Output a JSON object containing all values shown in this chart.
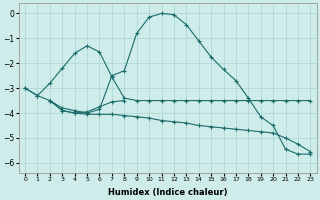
{
  "xlabel": "Humidex (Indice chaleur)",
  "ylabel": "",
  "xlim": [
    -0.5,
    23.5
  ],
  "ylim": [
    -6.4,
    0.4
  ],
  "bg_color": "#ceecea",
  "grid_color": "#b0d8d4",
  "line_color": "#1a6b6b",
  "lines": [
    {
      "x": [
        0,
        1,
        2,
        3,
        4,
        5,
        6,
        7,
        8,
        9,
        10,
        11,
        12,
        13,
        14,
        15,
        16,
        17,
        18,
        19,
        20,
        21,
        22,
        23
      ],
      "y": [
        -3.0,
        -3.3,
        -2.8,
        -2.2,
        -1.6,
        -1.3,
        -1.55,
        -2.55,
        -3.4,
        -3.5,
        -3.5,
        -3.5,
        -3.5,
        -3.5,
        -3.5,
        -3.5,
        -3.5,
        -3.5,
        -3.5,
        -3.5,
        -3.5,
        -3.5,
        -3.5,
        -3.5
      ],
      "marker": "+"
    },
    {
      "x": [
        0,
        1,
        2,
        3,
        4,
        5,
        6,
        7,
        8,
        9,
        10,
        11,
        12,
        13,
        14,
        15,
        16,
        17,
        18,
        19,
        20,
        21,
        22,
        23
      ],
      "y": [
        -3.0,
        -3.3,
        -3.5,
        -3.8,
        -3.9,
        -4.0,
        -3.85,
        -2.5,
        -2.3,
        -0.8,
        -0.15,
        0.0,
        -0.05,
        -0.45,
        -1.1,
        -1.75,
        -2.25,
        -2.7,
        -3.4,
        -4.15,
        -4.5,
        -5.45,
        -5.65,
        -5.65
      ],
      "marker": "+"
    },
    {
      "x": [
        2,
        3,
        4,
        5,
        6,
        7,
        8,
        9,
        10,
        11,
        12,
        13,
        14,
        15,
        16,
        17,
        18,
        19,
        20,
        21,
        22,
        23
      ],
      "y": [
        -3.5,
        -3.9,
        -4.0,
        -4.05,
        -4.05,
        -4.05,
        -4.1,
        -4.15,
        -4.2,
        -4.3,
        -4.35,
        -4.4,
        -4.5,
        -4.55,
        -4.6,
        -4.65,
        -4.7,
        -4.75,
        -4.8,
        -5.0,
        -5.25,
        -5.55
      ],
      "marker": "+"
    },
    {
      "x": [
        2,
        3,
        4,
        5,
        6,
        7,
        8
      ],
      "y": [
        -3.5,
        -3.9,
        -4.0,
        -3.95,
        -3.75,
        -3.55,
        -3.5
      ],
      "marker": "+"
    }
  ],
  "yticks": [
    0,
    -1,
    -2,
    -3,
    -4,
    -5,
    -6
  ],
  "xticks": [
    0,
    1,
    2,
    3,
    4,
    5,
    6,
    7,
    8,
    9,
    10,
    11,
    12,
    13,
    14,
    15,
    16,
    17,
    18,
    19,
    20,
    21,
    22,
    23
  ]
}
